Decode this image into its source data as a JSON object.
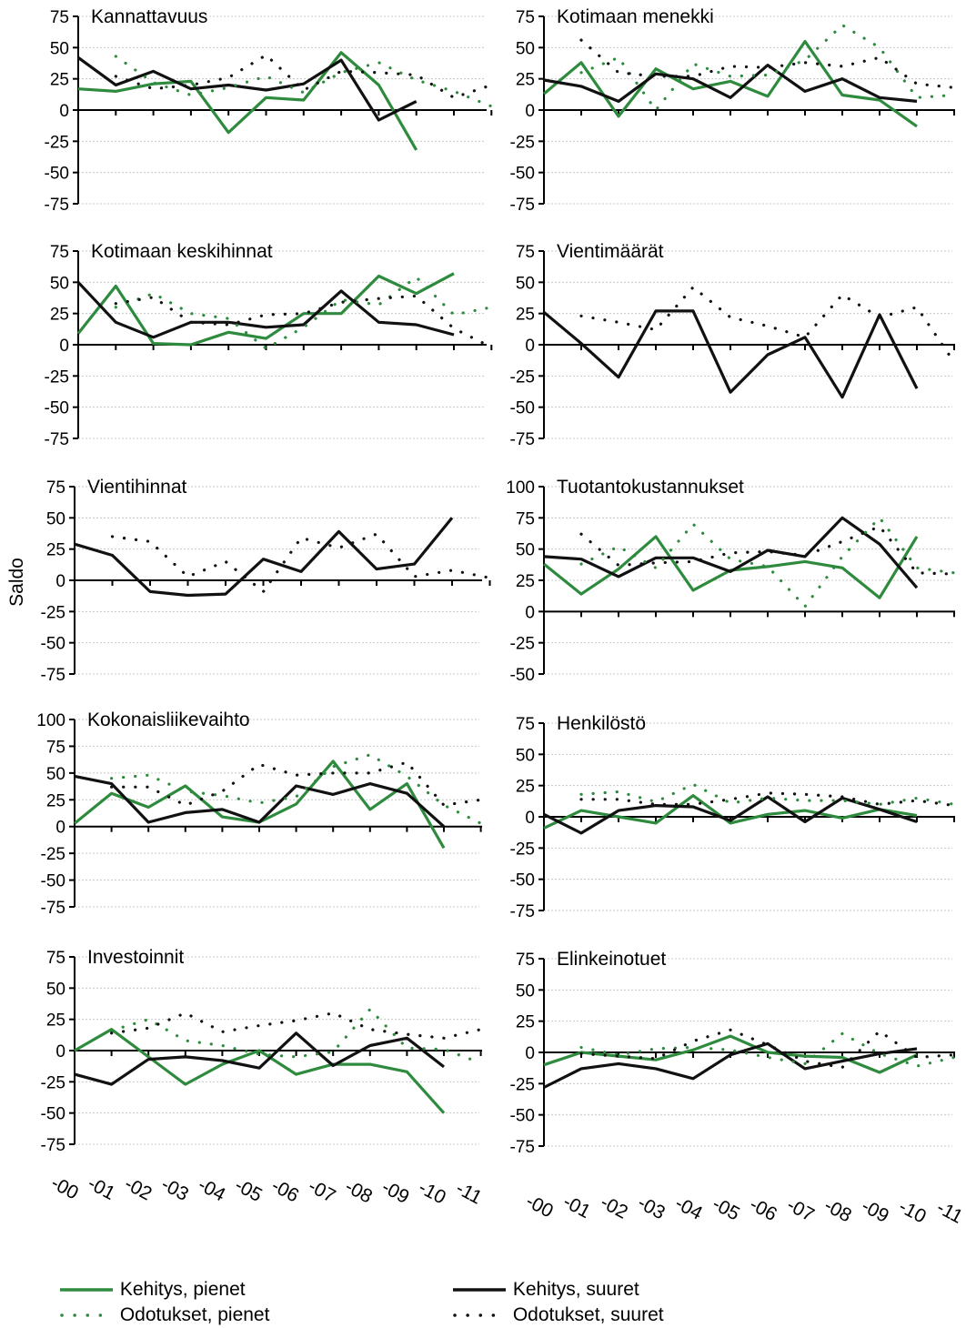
{
  "y_axis_label": "Saldo",
  "colors": {
    "pienet": "#2e8b3e",
    "suuret": "#111111",
    "grid": "#c8c8c8"
  },
  "legend": {
    "items": [
      {
        "label": "Kehitys, pienet",
        "style": "solid",
        "color": "#2e8b3e"
      },
      {
        "label": "Odotukset, pienet",
        "style": "dotted",
        "color": "#2e8b3e"
      },
      {
        "label": "Kehitys, suuret",
        "style": "solid",
        "color": "#111111"
      },
      {
        "label": "Odotukset, suuret",
        "style": "dotted",
        "color": "#111111"
      }
    ]
  },
  "x_tick_labels": [
    "-00",
    "-01",
    "-02",
    "-03",
    "-04",
    "-05",
    "-06",
    "-07",
    "-08",
    "-09",
    "-10",
    "-11"
  ],
  "chart_data": [
    {
      "type": "line",
      "title": "Kannattavuus",
      "ylim": [
        -75,
        75
      ],
      "yticks": [
        75,
        50,
        25,
        0,
        -25,
        -50,
        -75
      ],
      "x": [
        "-00",
        "-01",
        "-02",
        "-03",
        "-04",
        "-05",
        "-06",
        "-07",
        "-08",
        "-09",
        "-10",
        "-11"
      ],
      "series": [
        {
          "name": "Kehitys, pienet",
          "values": [
            17,
            15,
            21,
            23,
            -18,
            10,
            8,
            46,
            20,
            -32,
            null,
            null
          ]
        },
        {
          "name": "Kehitys, suuret",
          "values": [
            42,
            20,
            31,
            17,
            20,
            16,
            21,
            40,
            -8,
            7,
            null,
            null
          ]
        },
        {
          "name": "Odotukset, pienet",
          "values": [
            null,
            43,
            22,
            12,
            18,
            27,
            14,
            30,
            38,
            24,
            15,
            3
          ]
        },
        {
          "name": "Odotukset, suuret",
          "values": [
            null,
            27,
            17,
            20,
            26,
            44,
            16,
            31,
            30,
            28,
            10,
            20
          ]
        }
      ]
    },
    {
      "type": "line",
      "title": "Kotimaan menekki",
      "ylim": [
        -75,
        75
      ],
      "yticks": [
        75,
        50,
        25,
        0,
        -25,
        -50,
        -75
      ],
      "x": [
        "-00",
        "-01",
        "-02",
        "-03",
        "-04",
        "-05",
        "-06",
        "-07",
        "-08",
        "-09",
        "-10",
        "-11"
      ],
      "series": [
        {
          "name": "Kehitys, pienet",
          "values": [
            13,
            38,
            -5,
            33,
            17,
            23,
            11,
            55,
            12,
            8,
            -13,
            null
          ]
        },
        {
          "name": "Kehitys, suuret",
          "values": [
            24,
            19,
            7,
            29,
            25,
            10,
            36,
            15,
            25,
            10,
            7,
            null
          ]
        },
        {
          "name": "Odotukset, pienet",
          "values": [
            null,
            30,
            42,
            0,
            37,
            27,
            28,
            40,
            68,
            50,
            10,
            12
          ]
        },
        {
          "name": "Odotukset, suuret",
          "values": [
            null,
            56,
            30,
            27,
            27,
            35,
            34,
            38,
            35,
            42,
            21,
            18
          ]
        }
      ]
    },
    {
      "type": "line",
      "title": "Kotimaan keskihinnat",
      "ylim": [
        -75,
        75
      ],
      "yticks": [
        75,
        50,
        25,
        0,
        -25,
        -50,
        -75
      ],
      "x": [
        "-00",
        "-01",
        "-02",
        "-03",
        "-04",
        "-05",
        "-06",
        "-07",
        "-08",
        "-09",
        "-10",
        "-11"
      ],
      "series": [
        {
          "name": "Kehitys, pienet",
          "values": [
            9,
            47,
            1,
            0,
            10,
            5,
            25,
            25,
            55,
            41,
            57,
            null
          ]
        },
        {
          "name": "Kehitys, suuret",
          "values": [
            50,
            18,
            6,
            18,
            18,
            14,
            16,
            43,
            18,
            16,
            8,
            null
          ]
        },
        {
          "name": "Odotukset, pienet",
          "values": [
            null,
            30,
            41,
            25,
            21,
            -3,
            14,
            36,
            32,
            54,
            24,
            30
          ]
        },
        {
          "name": "Odotukset, suuret",
          "values": [
            null,
            33,
            38,
            18,
            16,
            24,
            25,
            34,
            37,
            39,
            13,
            -2
          ]
        }
      ]
    },
    {
      "type": "line",
      "title": "Vientimäärät",
      "ylim": [
        -75,
        75
      ],
      "yticks": [
        75,
        50,
        25,
        0,
        -25,
        -50,
        -75
      ],
      "x": [
        "-00",
        "-01",
        "-02",
        "-03",
        "-04",
        "-05",
        "-06",
        "-07",
        "-08",
        "-09",
        "-10",
        "-11"
      ],
      "series": [
        {
          "name": "Kehitys, suuret",
          "values": [
            26,
            1,
            -26,
            27,
            27,
            -38,
            -8,
            6,
            -42,
            24,
            -35,
            null
          ]
        },
        {
          "name": "Odotukset, suuret",
          "values": [
            null,
            23,
            18,
            12,
            46,
            22,
            15,
            6,
            40,
            22,
            30,
            -14
          ]
        }
      ]
    },
    {
      "type": "line",
      "title": "Vientihinnat",
      "ylim": [
        -75,
        75
      ],
      "yticks": [
        75,
        50,
        25,
        0,
        -25,
        -50,
        -75
      ],
      "x": [
        "-00",
        "-01",
        "-02",
        "-03",
        "-04",
        "-05",
        "-06",
        "-07",
        "-08",
        "-09",
        "-10",
        "-11"
      ],
      "series": [
        {
          "name": "Kehitys, suuret",
          "values": [
            29,
            20,
            -9,
            -12,
            -11,
            17,
            7,
            39,
            9,
            13,
            50,
            null
          ]
        },
        {
          "name": "Odotukset, suuret",
          "values": [
            null,
            35,
            31,
            3,
            15,
            -9,
            34,
            26,
            37,
            3,
            8,
            2
          ]
        }
      ]
    },
    {
      "type": "line",
      "title": "Tuotantokustannukset",
      "ylim": [
        -50,
        100
      ],
      "yticks": [
        100,
        75,
        50,
        25,
        0,
        -25,
        -50
      ],
      "x": [
        "-00",
        "-01",
        "-02",
        "-03",
        "-04",
        "-05",
        "-06",
        "-07",
        "-08",
        "-09",
        "-10",
        "-11"
      ],
      "series": [
        {
          "name": "Kehitys, pienet",
          "values": [
            38,
            14,
            34,
            60,
            17,
            33,
            36,
            40,
            35,
            11,
            60,
            null
          ]
        },
        {
          "name": "Kehitys, suuret",
          "values": [
            44,
            42,
            28,
            43,
            43,
            32,
            49,
            44,
            75,
            54,
            19,
            null
          ]
        },
        {
          "name": "Odotukset, pienet",
          "values": [
            null,
            38,
            52,
            35,
            70,
            42,
            36,
            4,
            44,
            75,
            35,
            31
          ]
        },
        {
          "name": "Odotukset, suuret",
          "values": [
            null,
            62,
            37,
            39,
            40,
            47,
            48,
            45,
            56,
            68,
            31,
            30
          ]
        }
      ]
    },
    {
      "type": "line",
      "title": "Kokonaisliikevaihto",
      "ylim": [
        -75,
        100
      ],
      "yticks": [
        100,
        75,
        50,
        25,
        0,
        -25,
        -50,
        -75
      ],
      "x": [
        "-00",
        "-01",
        "-02",
        "-03",
        "-04",
        "-05",
        "-06",
        "-07",
        "-08",
        "-09",
        "-10",
        "-11"
      ],
      "series": [
        {
          "name": "Kehitys, pienet",
          "values": [
            3,
            31,
            18,
            38,
            9,
            4,
            21,
            61,
            16,
            40,
            -20,
            null
          ]
        },
        {
          "name": "Kehitys, suuret",
          "values": [
            47,
            40,
            4,
            13,
            16,
            4,
            38,
            30,
            40,
            31,
            0,
            null
          ]
        },
        {
          "name": "Odotukset, pienet",
          "values": [
            null,
            45,
            48,
            33,
            29,
            22,
            28,
            56,
            67,
            47,
            20,
            3
          ]
        },
        {
          "name": "Odotukset, suuret",
          "values": [
            null,
            37,
            37,
            20,
            33,
            58,
            48,
            50,
            50,
            60,
            20,
            25
          ]
        }
      ]
    },
    {
      "type": "line",
      "title": "Henkilöstö",
      "ylim": [
        -75,
        75
      ],
      "yticks": [
        75,
        50,
        25,
        0,
        -25,
        -50,
        -75
      ],
      "x": [
        "-00",
        "-01",
        "-02",
        "-03",
        "-04",
        "-05",
        "-06",
        "-07",
        "-08",
        "-09",
        "-10",
        "-11"
      ],
      "series": [
        {
          "name": "Kehitys, pienet",
          "values": [
            -9,
            5,
            0,
            -5,
            17,
            -5,
            2,
            5,
            -1,
            6,
            1,
            null
          ]
        },
        {
          "name": "Kehitys, suuret",
          "values": [
            2,
            -13,
            5,
            9,
            8,
            -3,
            16,
            -4,
            15,
            6,
            -4,
            null
          ]
        },
        {
          "name": "Odotukset, pienet",
          "values": [
            null,
            18,
            20,
            12,
            26,
            11,
            15,
            13,
            13,
            10,
            15,
            10
          ]
        },
        {
          "name": "Odotukset, suuret",
          "values": [
            null,
            14,
            14,
            10,
            10,
            14,
            19,
            18,
            16,
            10,
            13,
            9
          ]
        }
      ]
    },
    {
      "type": "line",
      "title": "Investoinnit",
      "ylim": [
        -75,
        75
      ],
      "yticks": [
        75,
        50,
        25,
        0,
        -25,
        -50,
        -75
      ],
      "x": [
        "-00",
        "-01",
        "-02",
        "-03",
        "-04",
        "-05",
        "-06",
        "-07",
        "-08",
        "-09",
        "-10",
        "-11"
      ],
      "series": [
        {
          "name": "Kehitys, pienet",
          "values": [
            0,
            17,
            -5,
            -27,
            -11,
            0,
            -19,
            -11,
            -11,
            -17,
            -50,
            null
          ]
        },
        {
          "name": "Kehitys, suuret",
          "values": [
            -19,
            -27,
            -7,
            -5,
            -8,
            -14,
            14,
            -12,
            4,
            10,
            -13,
            null
          ]
        },
        {
          "name": "Odotukset, pienet",
          "values": [
            null,
            16,
            25,
            8,
            4,
            -3,
            -5,
            -1,
            33,
            2,
            1,
            -10
          ]
        },
        {
          "name": "Odotukset, suuret",
          "values": [
            null,
            14,
            18,
            30,
            15,
            20,
            24,
            30,
            17,
            13,
            10,
            17
          ]
        }
      ]
    },
    {
      "type": "line",
      "title": "Elinkeinotuet",
      "ylim": [
        -75,
        75
      ],
      "yticks": [
        75,
        50,
        25,
        0,
        -25,
        -50,
        -75
      ],
      "x": [
        "-00",
        "-01",
        "-02",
        "-03",
        "-04",
        "-05",
        "-06",
        "-07",
        "-08",
        "-09",
        "-10",
        "-11"
      ],
      "series": [
        {
          "name": "Kehitys, pienet",
          "values": [
            -10,
            0,
            -3,
            -6,
            2,
            13,
            0,
            -3,
            -4,
            -16,
            -2,
            null
          ]
        },
        {
          "name": "Kehitys, suuret",
          "values": [
            -28,
            -13,
            -9,
            -13,
            -21,
            -2,
            7,
            -13,
            -7,
            -1,
            3,
            null
          ]
        },
        {
          "name": "Odotukset, pienet",
          "values": [
            null,
            4,
            -2,
            3,
            4,
            2,
            -4,
            -9,
            15,
            -1,
            -11,
            -4
          ]
        },
        {
          "name": "Odotukset, suuret",
          "values": [
            null,
            -1,
            -3,
            -5,
            9,
            18,
            6,
            -7,
            -12,
            17,
            -4,
            -2
          ]
        }
      ]
    }
  ]
}
